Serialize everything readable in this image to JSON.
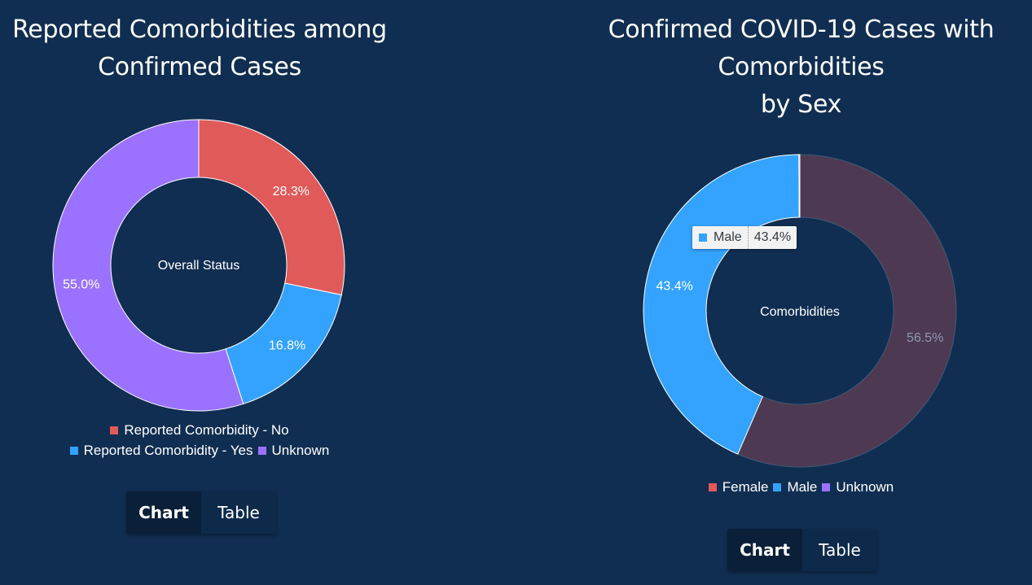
{
  "chart_data": [
    {
      "type": "pie",
      "title_lines": [
        "Reported Comorbidities among",
        "Confirmed Cases"
      ],
      "center_label": "Overall Status",
      "slices": [
        {
          "name": "Reported Comorbidity - No",
          "value": 28.3,
          "label": "28.3%",
          "color": "#e05a5a"
        },
        {
          "name": "Reported Comorbidity - Yes",
          "value": 16.8,
          "label": "16.8%",
          "color": "#33a3ff"
        },
        {
          "name": "Unknown",
          "value": 55.0,
          "label": "55.0%",
          "color": "#9a72ff"
        }
      ],
      "legend_rows": [
        [
          0
        ],
        [
          1,
          2
        ]
      ],
      "toggle": {
        "chart": "Chart",
        "table": "Table",
        "active": "chart"
      }
    },
    {
      "type": "pie",
      "title_lines": [
        "Confirmed COVID-19 Cases with",
        "Comorbidities",
        "by Sex"
      ],
      "center_label": "Comorbidities",
      "slices": [
        {
          "name": "Female",
          "value": 56.5,
          "label": "56.5%",
          "color": "#e05a5a",
          "dimmed": true
        },
        {
          "name": "Male",
          "value": 43.4,
          "label": "43.4%",
          "color": "#33a3ff"
        },
        {
          "name": "Unknown",
          "value": 0.1,
          "label": "",
          "color": "#9a72ff"
        }
      ],
      "legend_rows": [
        [
          0,
          1,
          2
        ]
      ],
      "tooltip": {
        "name": "Male",
        "value": "43.4%",
        "color": "#33a3ff"
      },
      "toggle": {
        "chart": "Chart",
        "table": "Table",
        "active": "chart"
      }
    }
  ]
}
